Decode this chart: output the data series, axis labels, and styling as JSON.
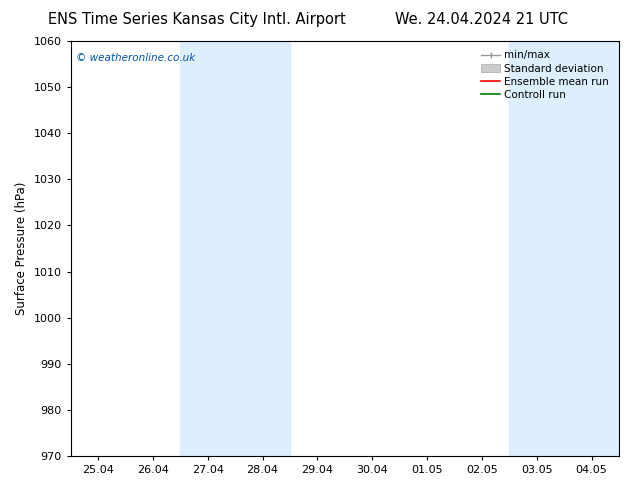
{
  "title_left": "ENS Time Series Kansas City Intl. Airport",
  "title_right": "We. 24.04.2024 21 UTC",
  "ylabel": "Surface Pressure (hPa)",
  "ylim": [
    970,
    1060
  ],
  "yticks": [
    970,
    980,
    990,
    1000,
    1010,
    1020,
    1030,
    1040,
    1050,
    1060
  ],
  "x_tick_labels": [
    "25.04",
    "26.04",
    "27.04",
    "28.04",
    "29.04",
    "30.04",
    "01.05",
    "02.05",
    "03.05",
    "04.05"
  ],
  "x_tick_positions": [
    0,
    1,
    2,
    3,
    4,
    5,
    6,
    7,
    8,
    9
  ],
  "xlim": [
    -0.5,
    9.5
  ],
  "shade_bands": [
    {
      "xmin": 1.5,
      "xmax": 3.5
    },
    {
      "xmin": 7.5,
      "xmax": 9.5
    }
  ],
  "shade_color": "#ddeeff",
  "copyright_text": "© weatheronline.co.uk",
  "copyright_color": "#0055aa",
  "bg_color": "#ffffff",
  "plot_area_color": "#ffffff",
  "title_fontsize": 10.5,
  "label_fontsize": 8.5,
  "tick_fontsize": 8,
  "legend_fontsize": 7.5
}
